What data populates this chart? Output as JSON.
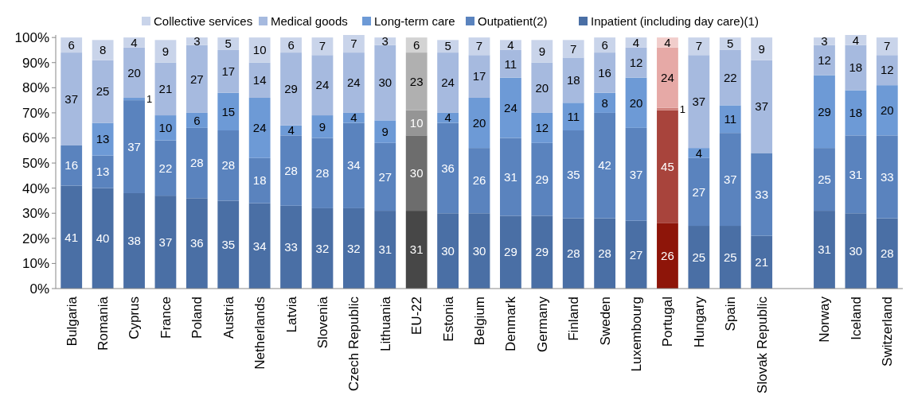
{
  "chart_data": {
    "type": "bar",
    "stacked": true,
    "data_labels": true,
    "legend": "top",
    "grid": false,
    "categories": [
      "Bulgaria",
      "Romania",
      "Cyprus",
      "France",
      "Poland",
      "Austria",
      "Netherlands",
      "Latvia",
      "Slovenia",
      "Czech Republic",
      "Lithuania",
      "EU-22",
      "Estonia",
      "Belgium",
      "Denmark",
      "Germany",
      "Finland",
      "Sweden",
      "Luxembourg",
      "Portugal",
      "Hungary",
      "Spain",
      "Slovak Republic",
      null,
      "Norway",
      "Iceland",
      "Switzerland"
    ],
    "ylim": [
      0,
      101
    ],
    "yticks": [
      {
        "value": 0,
        "label": "0%"
      },
      {
        "value": 10,
        "label": "10%"
      },
      {
        "value": 20,
        "label": "20%"
      },
      {
        "value": 30,
        "label": "30%"
      },
      {
        "value": 40,
        "label": "40%"
      },
      {
        "value": 50,
        "label": "50%"
      },
      {
        "value": 60,
        "label": "60%"
      },
      {
        "value": 70,
        "label": "70%"
      },
      {
        "value": 80,
        "label": "80%"
      },
      {
        "value": 90,
        "label": "90%"
      },
      {
        "value": 100,
        "label": "100%"
      }
    ],
    "series": [
      {
        "name": "Inpatient (including day care)(1)",
        "color": "#4a6fa5",
        "colors": [
          "#4a6fa5",
          "#4a6fa5",
          "#4a6fa5",
          "#4a6fa5",
          "#4a6fa5",
          "#4a6fa5",
          "#4a6fa5",
          "#4a6fa5",
          "#4a6fa5",
          "#4a6fa5",
          "#4a6fa5",
          "#474747",
          "#4a6fa5",
          "#4a6fa5",
          "#4a6fa5",
          "#4a6fa5",
          "#4a6fa5",
          "#4a6fa5",
          "#4a6fa5",
          "#8e1509",
          "#4a6fa5",
          "#4a6fa5",
          "#4a6fa5",
          null,
          "#4a6fa5",
          "#4a6fa5",
          "#4a6fa5"
        ],
        "values": [
          41,
          40,
          38,
          37,
          36,
          35,
          34,
          33,
          32,
          32,
          31,
          31,
          30,
          30,
          29,
          29,
          28,
          28,
          27,
          26,
          25,
          25,
          21,
          null,
          31,
          30,
          28
        ]
      },
      {
        "name": "Outpatient(2)",
        "color": "#5a83be",
        "colors": [
          "#5a83be",
          "#5a83be",
          "#5a83be",
          "#5a83be",
          "#5a83be",
          "#5a83be",
          "#5a83be",
          "#5a83be",
          "#5a83be",
          "#5a83be",
          "#5a83be",
          "#6d6d6d",
          "#5a83be",
          "#5a83be",
          "#5a83be",
          "#5a83be",
          "#5a83be",
          "#5a83be",
          "#5a83be",
          "#a8443c",
          "#5a83be",
          "#5a83be",
          "#5a83be",
          null,
          "#5a83be",
          "#5a83be",
          "#5a83be"
        ],
        "values": [
          16,
          13,
          37,
          22,
          28,
          28,
          18,
          28,
          28,
          34,
          27,
          30,
          36,
          26,
          31,
          29,
          35,
          42,
          37,
          45,
          27,
          37,
          33,
          null,
          25,
          31,
          33
        ]
      },
      {
        "name": "Long-term care",
        "color": "#6d9ad6",
        "colors": [
          null,
          "#6d9ad6",
          "#6d9ad6",
          "#6d9ad6",
          "#6d9ad6",
          "#6d9ad6",
          "#6d9ad6",
          "#6d9ad6",
          "#6d9ad6",
          "#6d9ad6",
          "#6d9ad6",
          "#959595",
          "#6d9ad6",
          "#6d9ad6",
          "#6d9ad6",
          "#6d9ad6",
          "#6d9ad6",
          "#6d9ad6",
          "#6d9ad6",
          "#cf7f7a",
          "#6d9ad6",
          "#6d9ad6",
          null,
          null,
          "#6d9ad6",
          "#6d9ad6",
          "#6d9ad6"
        ],
        "values": [
          null,
          13,
          1,
          10,
          6,
          15,
          24,
          4,
          9,
          4,
          9,
          10,
          4,
          20,
          24,
          12,
          11,
          8,
          20,
          1,
          4,
          11,
          null,
          null,
          29,
          18,
          20
        ]
      },
      {
        "name": "Medical goods",
        "color": "#a6badf",
        "colors": [
          "#a6badf",
          "#a6badf",
          "#a6badf",
          "#a6badf",
          "#a6badf",
          "#a6badf",
          "#a6badf",
          "#a6badf",
          "#a6badf",
          "#a6badf",
          "#a6badf",
          "#b0b0b0",
          "#a6badf",
          "#a6badf",
          "#a6badf",
          "#a6badf",
          "#a6badf",
          "#a6badf",
          "#a6badf",
          "#e6a9a6",
          "#a6badf",
          "#a6badf",
          "#a6badf",
          null,
          "#a6badf",
          "#a6badf",
          "#a6badf"
        ],
        "values": [
          37,
          25,
          20,
          21,
          27,
          17,
          14,
          29,
          24,
          24,
          30,
          23,
          24,
          17,
          11,
          20,
          18,
          16,
          12,
          24,
          37,
          22,
          37,
          null,
          12,
          18,
          12
        ]
      },
      {
        "name": "Collective services",
        "color": "#c9d4ea",
        "colors": [
          "#c9d4ea",
          "#c9d4ea",
          "#c9d4ea",
          "#c9d4ea",
          "#c9d4ea",
          "#c9d4ea",
          "#c9d4ea",
          "#c9d4ea",
          "#c9d4ea",
          "#c9d4ea",
          "#c9d4ea",
          "#d3d3d3",
          "#c9d4ea",
          "#c9d4ea",
          "#c9d4ea",
          "#c9d4ea",
          "#c9d4ea",
          "#c9d4ea",
          "#c9d4ea",
          "#f1cdcb",
          "#c9d4ea",
          "#c9d4ea",
          "#c9d4ea",
          null,
          "#c9d4ea",
          "#c9d4ea",
          "#c9d4ea"
        ],
        "values": [
          6,
          8,
          4,
          9,
          3,
          5,
          10,
          6,
          7,
          7,
          3,
          6,
          5,
          7,
          4,
          9,
          7,
          6,
          4,
          4,
          7,
          5,
          9,
          null,
          3,
          4,
          7
        ]
      }
    ]
  }
}
